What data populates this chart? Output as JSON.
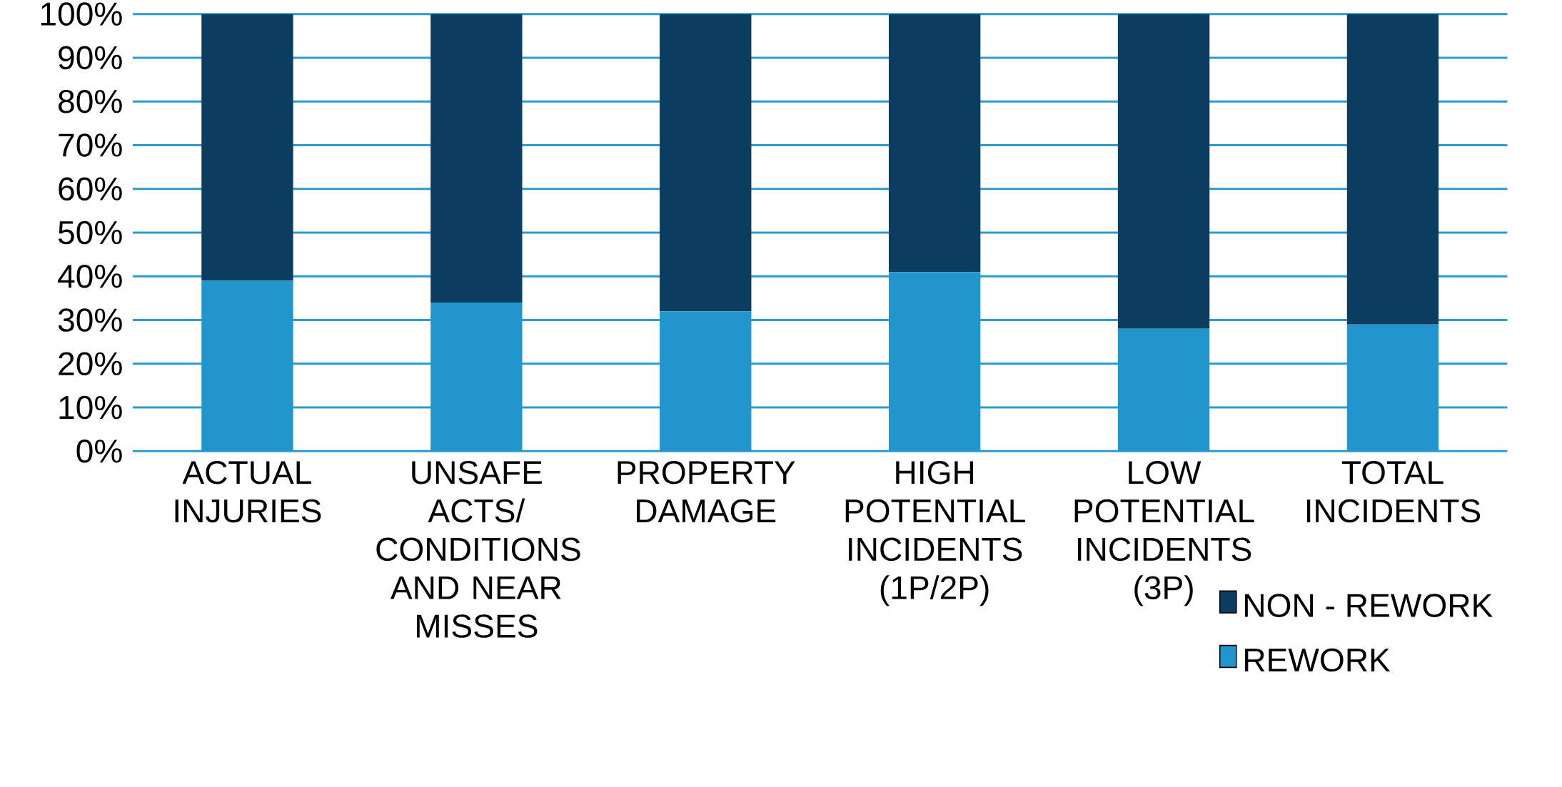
{
  "chart_data": {
    "type": "bar",
    "stacked": true,
    "categories": [
      "ACTUAL INJURIES",
      "UNSAFE ACTS/ CONDITIONS AND NEAR MISSES",
      "PROPERTY DAMAGE",
      "HIGH POTENTIAL INCIDENTS (1P/2P)",
      "LOW POTENTIAL INCIDENTS (3P)",
      "TOTAL INCIDENTS"
    ],
    "series": [
      {
        "name": "REWORK",
        "color": "#2196cd",
        "values": [
          39,
          34,
          32,
          41,
          28,
          29
        ]
      },
      {
        "name": "NON - REWORK",
        "color": "#0b3d60",
        "values": [
          61,
          66,
          68,
          59,
          72,
          71
        ]
      }
    ],
    "ylim": [
      0,
      100
    ],
    "yticks": [
      {
        "value": 0,
        "label": "0%"
      },
      {
        "value": 10,
        "label": "10%"
      },
      {
        "value": 20,
        "label": "20%"
      },
      {
        "value": 30,
        "label": "30%"
      },
      {
        "value": 40,
        "label": "40%"
      },
      {
        "value": 50,
        "label": "50%"
      },
      {
        "value": 60,
        "label": "60%"
      },
      {
        "value": 70,
        "label": "70%"
      },
      {
        "value": 80,
        "label": "80%"
      },
      {
        "value": 90,
        "label": "90%"
      },
      {
        "value": 100,
        "label": "100%"
      }
    ],
    "grid": "y",
    "legend": "bottom right"
  }
}
